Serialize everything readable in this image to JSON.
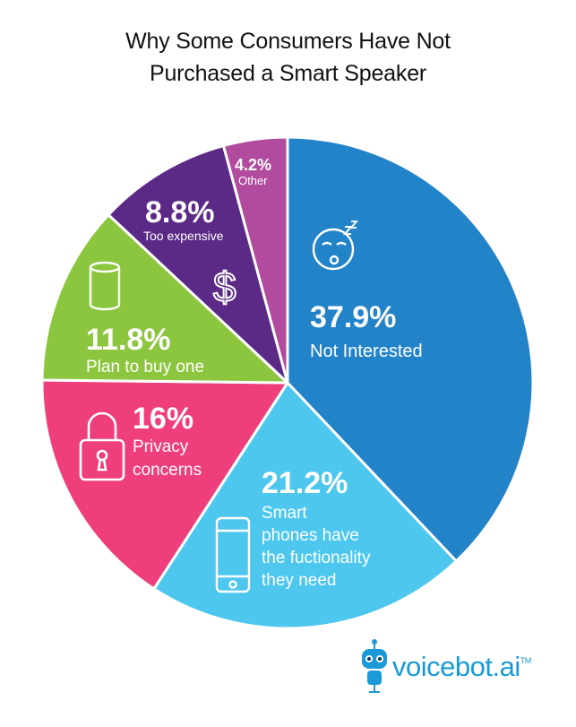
{
  "title_lines": [
    "Why Some Consumers Have Not",
    "Purchased a Smart Speaker"
  ],
  "chart_data": {
    "type": "pie",
    "title": "Why Some Consumers Have Not Purchased a Smart Speaker",
    "slices": [
      {
        "value_label": "37.9%",
        "value": 37.9,
        "label_lines": [
          "Not Interested"
        ],
        "color": "#2383c8",
        "icon": "sleeping-face-icon"
      },
      {
        "value_label": "21.2%",
        "value": 21.2,
        "label_lines": [
          "Smart",
          "phones have",
          "the fuctionality",
          "they need"
        ],
        "color": "#4dc7ee",
        "icon": "smartphone-icon"
      },
      {
        "value_label": "16%",
        "value": 16.0,
        "label_lines": [
          "Privacy",
          "concerns"
        ],
        "color": "#ee3f7c",
        "icon": "padlock-icon"
      },
      {
        "value_label": "11.8%",
        "value": 11.8,
        "label_lines": [
          "Plan to buy one"
        ],
        "color": "#8cc63f",
        "icon": "smart-speaker-icon"
      },
      {
        "value_label": "8.8%",
        "value": 8.8,
        "label_lines": [
          "Too expensive"
        ],
        "color": "#5b2a86",
        "icon": "dollar-sign-icon"
      },
      {
        "value_label": "4.2%",
        "value": 4.2,
        "label_lines": [
          "Other"
        ],
        "color": "#b04b9e",
        "icon": ""
      }
    ]
  },
  "logo": {
    "text": "voicebot.ai",
    "trademark": "TM"
  }
}
